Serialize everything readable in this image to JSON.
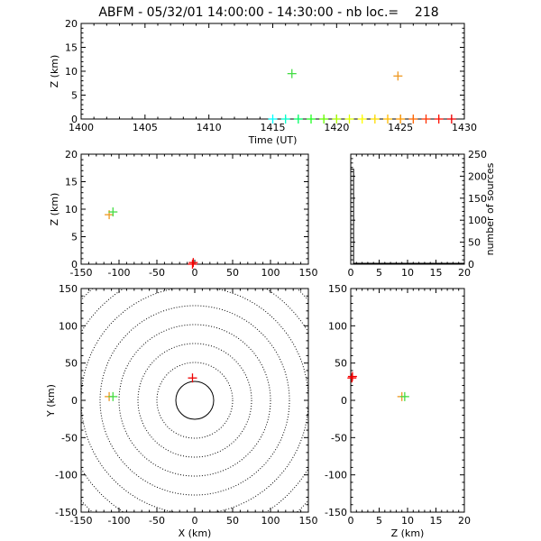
{
  "title": "ABFM - 05/32/01 14:00:00 - 14:30:00 - nb loc.=    218",
  "chart_data": [
    {
      "id": "time_height",
      "type": "scatter",
      "xlabel": "Time (UT)",
      "ylabel": "Z (km)",
      "xlim": [
        1400,
        1430
      ],
      "ylim": [
        0,
        20
      ],
      "xticks": [
        1400,
        1405,
        1410,
        1415,
        1420,
        1425,
        1430
      ],
      "yticks": [
        0,
        5,
        10,
        15,
        20
      ],
      "points": [
        {
          "x": 1415.0,
          "y": 0,
          "color": "#00ffff"
        },
        {
          "x": 1416.0,
          "y": 0,
          "color": "#00ffcc"
        },
        {
          "x": 1416.5,
          "y": 9.5,
          "color": "#44dd44"
        },
        {
          "x": 1417.0,
          "y": 0,
          "color": "#00ff66"
        },
        {
          "x": 1418.0,
          "y": 0,
          "color": "#22ff22"
        },
        {
          "x": 1419.0,
          "y": 0,
          "color": "#66ff00"
        },
        {
          "x": 1420.0,
          "y": 0,
          "color": "#aaff00"
        },
        {
          "x": 1421.0,
          "y": 0,
          "color": "#ddff00"
        },
        {
          "x": 1422.0,
          "y": 0,
          "color": "#ffff00"
        },
        {
          "x": 1423.0,
          "y": 0,
          "color": "#ffdd00"
        },
        {
          "x": 1424.0,
          "y": 0,
          "color": "#ffbb00"
        },
        {
          "x": 1424.8,
          "y": 9,
          "color": "#ee9922"
        },
        {
          "x": 1425.0,
          "y": 0,
          "color": "#ff9900"
        },
        {
          "x": 1426.0,
          "y": 0,
          "color": "#ff6600"
        },
        {
          "x": 1427.0,
          "y": 0,
          "color": "#ff3300"
        },
        {
          "x": 1428.0,
          "y": 0,
          "color": "#ff1100"
        },
        {
          "x": 1429.0,
          "y": 0,
          "color": "#ee0000"
        }
      ]
    },
    {
      "id": "x_height",
      "type": "scatter",
      "xlabel": "",
      "ylabel": "Z (km)",
      "xlim": [
        -150,
        150
      ],
      "ylim": [
        0,
        20
      ],
      "xticks": [
        -150,
        -100,
        -50,
        0,
        50,
        100,
        150
      ],
      "yticks": [
        0,
        5,
        10,
        15,
        20
      ],
      "points": [
        {
          "x": -113,
          "y": 9,
          "color": "#ee9922"
        },
        {
          "x": -108,
          "y": 9.5,
          "color": "#44dd44"
        },
        {
          "x": -3,
          "y": 0,
          "color": "#ff0000"
        },
        {
          "x": -2,
          "y": 0.3,
          "color": "#ee0000"
        }
      ]
    },
    {
      "id": "altitude_histogram",
      "type": "bar",
      "ylabel": "number of sources",
      "xlim": [
        0,
        20
      ],
      "ylim": [
        0,
        250
      ],
      "xticks": [
        0,
        5,
        10,
        15,
        20
      ],
      "yticks": [
        0,
        50,
        100,
        150,
        200,
        250
      ],
      "bins": [
        {
          "x0": 0,
          "x1": 0.5,
          "count": 216
        },
        {
          "x0": 0.5,
          "x1": 20,
          "count": 2
        }
      ]
    },
    {
      "id": "plan_view",
      "type": "scatter",
      "xlabel": "X (km)",
      "ylabel": "Y (km)",
      "xlim": [
        -150,
        150
      ],
      "ylim": [
        -150,
        150
      ],
      "xticks": [
        -150,
        -100,
        -50,
        0,
        50,
        100,
        150
      ],
      "yticks": [
        -150,
        -100,
        -50,
        0,
        50,
        100,
        150
      ],
      "range_rings_km": [
        25,
        50,
        75,
        100,
        125,
        150,
        175,
        200
      ],
      "points": [
        {
          "x": -113,
          "y": 5,
          "color": "#ee9922"
        },
        {
          "x": -108,
          "y": 5,
          "color": "#44dd44"
        },
        {
          "x": -3,
          "y": 30,
          "color": "#ee0000"
        }
      ]
    },
    {
      "id": "y_height",
      "type": "scatter",
      "xlabel": "Z (km)",
      "ylabel": "",
      "xlim": [
        0,
        20
      ],
      "ylim": [
        -150,
        150
      ],
      "xticks": [
        0,
        5,
        10,
        15,
        20
      ],
      "yticks": [
        -150,
        -100,
        -50,
        0,
        50,
        100,
        150
      ],
      "points": [
        {
          "x": 0.2,
          "y": 30,
          "color": "#ff0000"
        },
        {
          "x": 0.3,
          "y": 32,
          "color": "#ee0000"
        },
        {
          "x": 9,
          "y": 5,
          "color": "#ee9922"
        },
        {
          "x": 9.5,
          "y": 5,
          "color": "#44dd44"
        }
      ]
    }
  ]
}
